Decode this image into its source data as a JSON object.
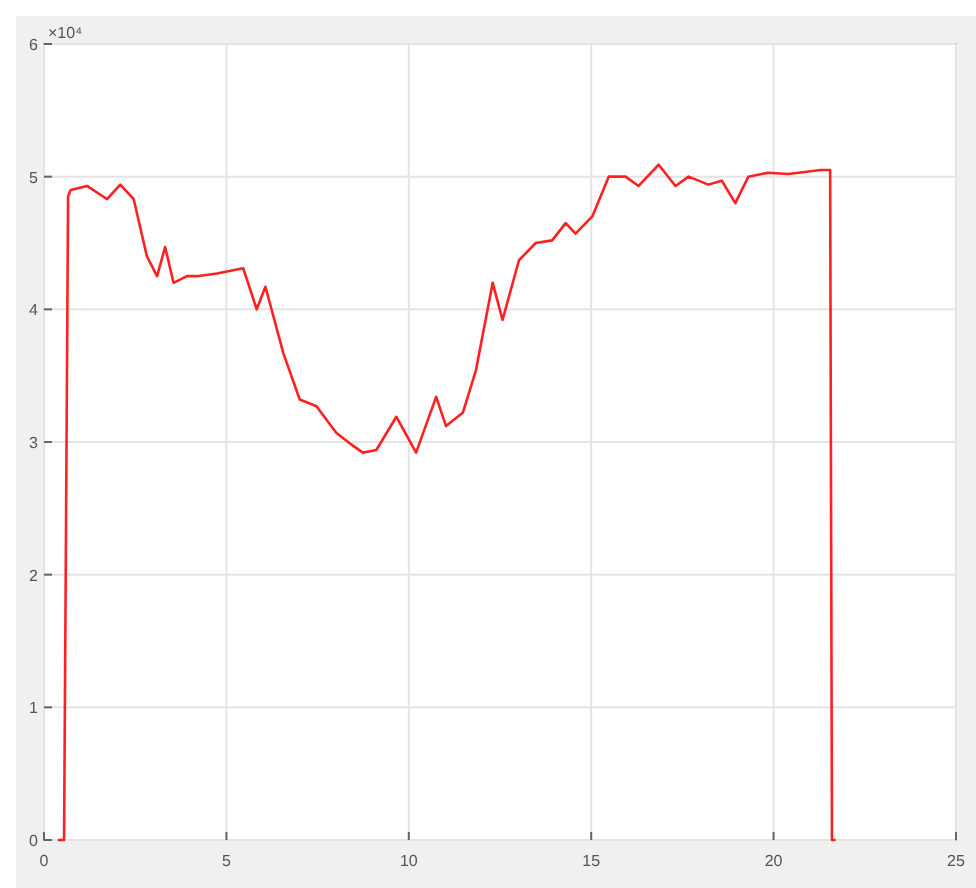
{
  "chart_data": {
    "type": "line",
    "x": [
      0.38,
      0.55,
      0.66,
      0.73,
      1.18,
      1.73,
      2.09,
      2.46,
      2.82,
      3.1,
      3.32,
      3.55,
      3.92,
      4.19,
      4.74,
      5.46,
      5.83,
      6.07,
      6.56,
      7.01,
      7.47,
      8.01,
      8.38,
      8.74,
      9.11,
      9.66,
      10.2,
      10.75,
      11.02,
      11.48,
      11.84,
      12.3,
      12.57,
      13.02,
      13.48,
      13.93,
      14.3,
      14.57,
      15.03,
      15.48,
      15.94,
      16.3,
      16.85,
      17.31,
      17.67,
      18.21,
      18.58,
      18.95,
      19.31,
      19.85,
      20.4,
      21.3,
      21.55,
      21.6,
      21.7
    ],
    "series": [
      {
        "color": "#ff2020",
        "values": [
          0,
          0,
          4.85,
          4.9,
          4.93,
          4.83,
          4.94,
          4.83,
          4.4,
          4.25,
          4.47,
          4.2,
          4.25,
          4.25,
          4.27,
          4.31,
          4.0,
          4.17,
          3.67,
          3.32,
          3.27,
          3.07,
          2.99,
          2.92,
          2.94,
          3.19,
          2.92,
          3.34,
          3.12,
          3.22,
          3.54,
          4.2,
          3.92,
          4.37,
          4.5,
          4.52,
          4.65,
          4.57,
          4.7,
          5.0,
          5.0,
          4.93,
          5.09,
          4.93,
          5.0,
          4.94,
          4.97,
          4.8,
          5.0,
          5.03,
          5.02,
          5.05,
          5.05,
          0,
          0
        ]
      }
    ],
    "xlim": [
      0,
      25
    ],
    "xticks": [
      0,
      5,
      10,
      15,
      20,
      25
    ],
    "ylim": [
      0,
      6
    ],
    "yticks": [
      0,
      1,
      2,
      3,
      4,
      5,
      6
    ],
    "grid": true,
    "annotations": [
      "×10⁴"
    ]
  }
}
